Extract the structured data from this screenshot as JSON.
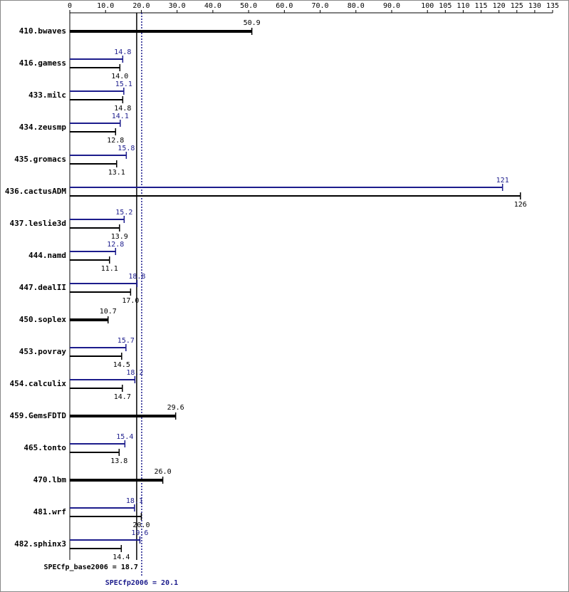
{
  "chart_data": {
    "type": "bar",
    "categories": [
      "410.bwaves",
      "416.gamess",
      "433.milc",
      "434.zeusmp",
      "435.gromacs",
      "436.cactusADM",
      "437.leslie3d",
      "444.namd",
      "447.dealII",
      "450.soplex",
      "453.povray",
      "454.calculix",
      "459.GemsFDTD",
      "465.tonto",
      "470.lbm",
      "481.wrf",
      "482.sphinx3"
    ],
    "series": [
      {
        "color": "#1c1c8c",
        "values": [
          null,
          14.8,
          15.1,
          14.1,
          15.8,
          121,
          15.2,
          12.8,
          18.8,
          null,
          15.7,
          18.2,
          null,
          15.4,
          null,
          18.1,
          19.6
        ],
        "value_labels": [
          null,
          "14.8",
          "15.1",
          "14.1",
          "15.8",
          "121",
          "15.2",
          "12.8",
          "18.8",
          null,
          "15.7",
          "18.2",
          null,
          "15.4",
          null,
          "18.1",
          "19.6"
        ]
      },
      {
        "color": "#000000",
        "values": [
          50.9,
          14.0,
          14.8,
          12.8,
          13.1,
          126,
          13.9,
          11.1,
          17.0,
          10.7,
          14.5,
          14.7,
          29.6,
          13.8,
          26.0,
          20.0,
          14.4
        ],
        "value_labels": [
          "50.9",
          "14.0",
          "14.8",
          "12.8",
          "13.1",
          "126",
          "13.9",
          "11.1",
          "17.0",
          "10.7",
          "14.5",
          "14.7",
          "29.6",
          "13.8",
          "26.0",
          "20.0",
          "14.4"
        ]
      }
    ],
    "xlim": [
      0,
      135
    ],
    "xticks": [
      0,
      {
        "value": 10,
        "label": "10.0"
      },
      {
        "value": 20,
        "label": "20.0"
      },
      {
        "value": 30,
        "label": "30.0"
      },
      {
        "value": 40,
        "label": "40.0"
      },
      {
        "value": 50,
        "label": "50.0"
      },
      {
        "value": 60,
        "label": "60.0"
      },
      {
        "value": 70,
        "label": "70.0"
      },
      {
        "value": 80,
        "label": "80.0"
      },
      {
        "value": 90,
        "label": "90.0"
      },
      100,
      105,
      110,
      115,
      120,
      125,
      130,
      135
    ],
    "reference_lines": [
      {
        "label": "SPECfp_base2006 = 18.7",
        "value": 18.7,
        "color": "#000000"
      },
      {
        "label": "SPECfp2006 = 20.1",
        "value": 20.1,
        "color": "#1c1c8c"
      }
    ]
  }
}
